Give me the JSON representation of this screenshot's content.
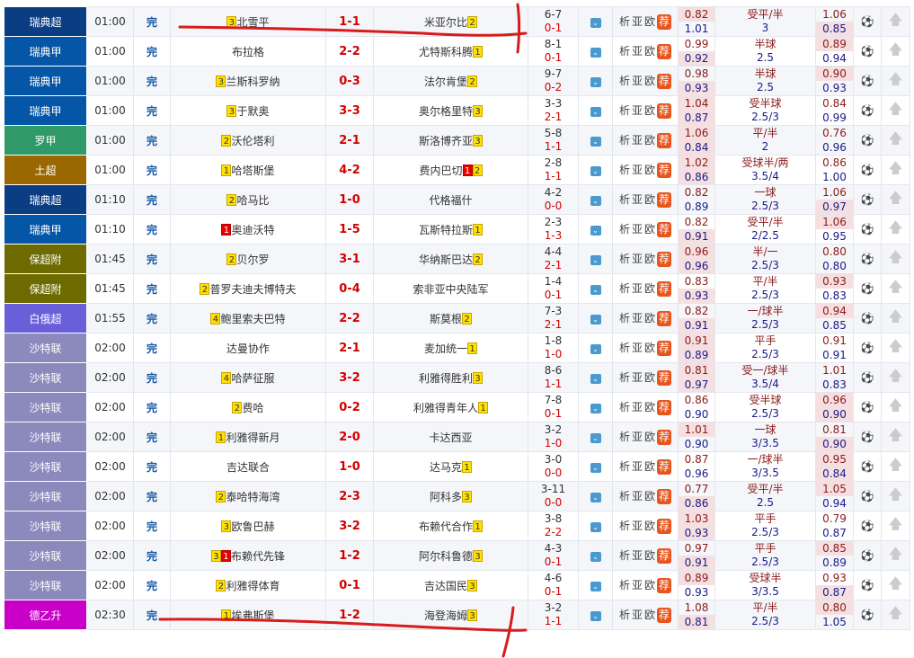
{
  "league_colors": {
    "瑞典超": "#0b3d82",
    "瑞典甲": "#0556a6",
    "罗甲": "#2f9a67",
    "土超": "#9a6700",
    "保超附": "#6d6b00",
    "白俄超": "#6960d9",
    "沙特联": "#8c89bd",
    "德乙升": "#c800c8"
  },
  "labels": {
    "analysis": "析",
    "asia": "亚",
    "euro": "欧",
    "recommend": "荐"
  },
  "icons": {
    "dropdown": "chevron-down-icon",
    "ball": "football-icon",
    "top": "arrow-up-icon"
  },
  "matches": [
    {
      "league": "瑞典超",
      "time": "01:00",
      "status": "完",
      "home": "北雪平",
      "home_badges": [
        {
          "t": "3",
          "c": "y"
        }
      ],
      "score": "1-1",
      "away": "米亚尔比",
      "away_badges": [
        {
          "t": "2",
          "c": "y"
        }
      ],
      "corners": "6-7",
      "half": "0-1",
      "o1": [
        "0.82",
        "1.01"
      ],
      "hcap": [
        "受平/半",
        "3"
      ],
      "o2": [
        "1.06",
        "0.85"
      ],
      "hl": [
        1,
        0,
        0,
        1
      ]
    },
    {
      "league": "瑞典甲",
      "time": "01:00",
      "status": "完",
      "home": "布拉格",
      "home_badges": [],
      "score": "2-2",
      "away": "尤特斯科腾",
      "away_badges": [
        {
          "t": "1",
          "c": "y"
        }
      ],
      "corners": "8-1",
      "half": "0-1",
      "o1": [
        "0.99",
        "0.92"
      ],
      "hcap": [
        "半球",
        "2.5"
      ],
      "o2": [
        "0.89",
        "0.94"
      ],
      "hl": [
        0,
        1,
        1,
        0
      ]
    },
    {
      "league": "瑞典甲",
      "time": "01:00",
      "status": "完",
      "home": "兰斯科罗纳",
      "home_badges": [
        {
          "t": "3",
          "c": "y"
        }
      ],
      "score": "0-3",
      "away": "法尔肯堡",
      "away_badges": [
        {
          "t": "2",
          "c": "y"
        }
      ],
      "corners": "9-7",
      "half": "0-2",
      "o1": [
        "0.98",
        "0.93"
      ],
      "hcap": [
        "半球",
        "2.5"
      ],
      "o2": [
        "0.90",
        "0.93"
      ],
      "hl": [
        0,
        1,
        1,
        0
      ]
    },
    {
      "league": "瑞典甲",
      "time": "01:00",
      "status": "完",
      "home": "于默奥",
      "home_badges": [
        {
          "t": "3",
          "c": "y"
        }
      ],
      "score": "3-3",
      "away": "奥尔格里特",
      "away_badges": [
        {
          "t": "3",
          "c": "y"
        }
      ],
      "corners": "3-3",
      "half": "2-1",
      "o1": [
        "1.04",
        "0.87"
      ],
      "hcap": [
        "受半球",
        "2.5/3"
      ],
      "o2": [
        "0.84",
        "0.99"
      ],
      "hl": [
        1,
        1,
        0,
        0
      ]
    },
    {
      "league": "罗甲",
      "time": "01:00",
      "status": "完",
      "home": "沃伦塔利",
      "home_badges": [
        {
          "t": "2",
          "c": "y"
        }
      ],
      "score": "2-1",
      "away": "斯洛博齐亚",
      "away_badges": [
        {
          "t": "3",
          "c": "y"
        }
      ],
      "corners": "5-8",
      "half": "1-1",
      "o1": [
        "1.06",
        "0.84"
      ],
      "hcap": [
        "平/半",
        "2"
      ],
      "o2": [
        "0.76",
        "0.96"
      ],
      "hl": [
        1,
        1,
        0,
        0
      ]
    },
    {
      "league": "土超",
      "time": "01:00",
      "status": "完",
      "home": "哈塔斯堡",
      "home_badges": [
        {
          "t": "1",
          "c": "y"
        }
      ],
      "score": "4-2",
      "away": "费内巴切",
      "away_badges": [
        {
          "t": "1",
          "c": "r"
        },
        {
          "t": "2",
          "c": "y"
        }
      ],
      "corners": "2-8",
      "half": "1-1",
      "o1": [
        "1.02",
        "0.86"
      ],
      "hcap": [
        "受球半/两",
        "3.5/4"
      ],
      "o2": [
        "0.86",
        "1.00"
      ],
      "hl": [
        1,
        1,
        0,
        0
      ]
    },
    {
      "league": "瑞典超",
      "time": "01:10",
      "status": "完",
      "home": "哈马比",
      "home_badges": [
        {
          "t": "2",
          "c": "y"
        }
      ],
      "score": "1-0",
      "away": "代格福什",
      "away_badges": [],
      "corners": "4-2",
      "half": "0-0",
      "o1": [
        "0.82",
        "0.89"
      ],
      "hcap": [
        "一球",
        "2.5/3"
      ],
      "o2": [
        "1.06",
        "0.97"
      ],
      "hl": [
        0,
        0,
        0,
        1
      ]
    },
    {
      "league": "瑞典甲",
      "time": "01:10",
      "status": "完",
      "home": "奥迪沃特",
      "home_badges": [
        {
          "t": "1",
          "c": "r"
        }
      ],
      "score": "1-5",
      "away": "瓦斯特拉斯",
      "away_badges": [
        {
          "t": "1",
          "c": "y"
        }
      ],
      "corners": "2-3",
      "half": "1-3",
      "o1": [
        "0.82",
        "0.91"
      ],
      "hcap": [
        "受平/半",
        "2/2.5"
      ],
      "o2": [
        "1.06",
        "0.95"
      ],
      "hl": [
        0,
        1,
        1,
        0
      ]
    },
    {
      "league": "保超附",
      "time": "01:45",
      "status": "完",
      "home": "贝尔罗",
      "home_badges": [
        {
          "t": "2",
          "c": "y"
        }
      ],
      "score": "3-1",
      "away": "华纳斯巴达",
      "away_badges": [
        {
          "t": "2",
          "c": "y"
        }
      ],
      "corners": "4-4",
      "half": "2-1",
      "o1": [
        "0.96",
        "0.96"
      ],
      "hcap": [
        "半/一",
        "2.5/3"
      ],
      "o2": [
        "0.80",
        "0.80"
      ],
      "hl": [
        1,
        1,
        0,
        0
      ]
    },
    {
      "league": "保超附",
      "time": "01:45",
      "status": "完",
      "home": "普罗夫迪夫博特夫",
      "home_badges": [
        {
          "t": "2",
          "c": "y"
        }
      ],
      "score": "0-4",
      "away": "索非亚中央陆军",
      "away_badges": [],
      "corners": "1-4",
      "half": "0-1",
      "o1": [
        "0.83",
        "0.93"
      ],
      "hcap": [
        "平/半",
        "2.5/3"
      ],
      "o2": [
        "0.93",
        "0.83"
      ],
      "hl": [
        0,
        1,
        1,
        0
      ]
    },
    {
      "league": "白俄超",
      "time": "01:55",
      "status": "完",
      "home": "鲍里索夫巴特",
      "home_badges": [
        {
          "t": "4",
          "c": "y"
        }
      ],
      "score": "2-2",
      "away": "斯莫根",
      "away_badges": [
        {
          "t": "2",
          "c": "y"
        }
      ],
      "corners": "7-3",
      "half": "2-1",
      "o1": [
        "0.82",
        "0.91"
      ],
      "hcap": [
        "一/球半",
        "2.5/3"
      ],
      "o2": [
        "0.94",
        "0.85"
      ],
      "hl": [
        0,
        1,
        1,
        0
      ]
    },
    {
      "league": "沙特联",
      "time": "02:00",
      "status": "完",
      "home": "达曼协作",
      "home_badges": [],
      "score": "2-1",
      "away": "麦加统一",
      "away_badges": [
        {
          "t": "1",
          "c": "y"
        }
      ],
      "corners": "1-8",
      "half": "1-0",
      "o1": [
        "0.91",
        "0.89"
      ],
      "hcap": [
        "平手",
        "2.5/3"
      ],
      "o2": [
        "0.91",
        "0.91"
      ],
      "hl": [
        1,
        1,
        0,
        0
      ]
    },
    {
      "league": "沙特联",
      "time": "02:00",
      "status": "完",
      "home": "哈萨征服",
      "home_badges": [
        {
          "t": "4",
          "c": "y"
        }
      ],
      "score": "3-2",
      "away": "利雅得胜利",
      "away_badges": [
        {
          "t": "3",
          "c": "y"
        }
      ],
      "corners": "8-6",
      "half": "1-1",
      "o1": [
        "0.81",
        "0.97"
      ],
      "hcap": [
        "受一/球半",
        "3.5/4"
      ],
      "o2": [
        "1.01",
        "0.83"
      ],
      "hl": [
        1,
        1,
        0,
        0
      ]
    },
    {
      "league": "沙特联",
      "time": "02:00",
      "status": "完",
      "home": "费哈",
      "home_badges": [
        {
          "t": "2",
          "c": "y"
        }
      ],
      "score": "0-2",
      "away": "利雅得青年人",
      "away_badges": [
        {
          "t": "1",
          "c": "y"
        }
      ],
      "corners": "7-8",
      "half": "0-1",
      "o1": [
        "0.86",
        "0.90"
      ],
      "hcap": [
        "受半球",
        "2.5/3"
      ],
      "o2": [
        "0.96",
        "0.90"
      ],
      "hl": [
        0,
        0,
        1,
        1
      ]
    },
    {
      "league": "沙特联",
      "time": "02:00",
      "status": "完",
      "home": "利雅得新月",
      "home_badges": [
        {
          "t": "1",
          "c": "y"
        }
      ],
      "score": "2-0",
      "away": "卡达西亚",
      "away_badges": [],
      "corners": "3-2",
      "half": "1-0",
      "o1": [
        "1.01",
        "0.90"
      ],
      "hcap": [
        "一球",
        "3/3.5"
      ],
      "o2": [
        "0.81",
        "0.90"
      ],
      "hl": [
        1,
        0,
        0,
        1
      ]
    },
    {
      "league": "沙特联",
      "time": "02:00",
      "status": "完",
      "home": "吉达联合",
      "home_badges": [],
      "score": "1-0",
      "away": "达马克",
      "away_badges": [
        {
          "t": "1",
          "c": "y"
        }
      ],
      "corners": "3-0",
      "half": "0-0",
      "o1": [
        "0.87",
        "0.96"
      ],
      "hcap": [
        "一/球半",
        "3/3.5"
      ],
      "o2": [
        "0.95",
        "0.84"
      ],
      "hl": [
        0,
        0,
        1,
        1
      ]
    },
    {
      "league": "沙特联",
      "time": "02:00",
      "status": "完",
      "home": "泰哈特海湾",
      "home_badges": [
        {
          "t": "2",
          "c": "y"
        }
      ],
      "score": "2-3",
      "away": "阿科多",
      "away_badges": [
        {
          "t": "3",
          "c": "y"
        }
      ],
      "corners": "3-11",
      "half": "0-0",
      "o1": [
        "0.77",
        "0.86"
      ],
      "hcap": [
        "受平/半",
        "2.5"
      ],
      "o2": [
        "1.05",
        "0.94"
      ],
      "hl": [
        0,
        1,
        1,
        0
      ]
    },
    {
      "league": "沙特联",
      "time": "02:00",
      "status": "完",
      "home": "欧鲁巴赫",
      "home_badges": [
        {
          "t": "3",
          "c": "y"
        }
      ],
      "score": "3-2",
      "away": "布赖代合作",
      "away_badges": [
        {
          "t": "1",
          "c": "y"
        }
      ],
      "corners": "3-8",
      "half": "2-2",
      "o1": [
        "1.03",
        "0.93"
      ],
      "hcap": [
        "平手",
        "2.5/3"
      ],
      "o2": [
        "0.79",
        "0.87"
      ],
      "hl": [
        1,
        1,
        0,
        0
      ]
    },
    {
      "league": "沙特联",
      "time": "02:00",
      "status": "完",
      "home": "布赖代先锋",
      "home_badges": [
        {
          "t": "3",
          "c": "y"
        },
        {
          "t": "1",
          "c": "r"
        }
      ],
      "score": "1-2",
      "away": "阿尔科鲁德",
      "away_badges": [
        {
          "t": "3",
          "c": "y"
        }
      ],
      "corners": "4-3",
      "half": "0-1",
      "o1": [
        "0.97",
        "0.91"
      ],
      "hcap": [
        "平手",
        "2.5/3"
      ],
      "o2": [
        "0.85",
        "0.89"
      ],
      "hl": [
        0,
        1,
        1,
        0
      ]
    },
    {
      "league": "沙特联",
      "time": "02:00",
      "status": "完",
      "home": "利雅得体育",
      "home_badges": [
        {
          "t": "2",
          "c": "y"
        }
      ],
      "score": "0-1",
      "away": "吉达国民",
      "away_badges": [
        {
          "t": "3",
          "c": "y"
        }
      ],
      "corners": "4-6",
      "half": "0-1",
      "o1": [
        "0.89",
        "0.93"
      ],
      "hcap": [
        "受球半",
        "3/3.5"
      ],
      "o2": [
        "0.93",
        "0.87"
      ],
      "hl": [
        1,
        0,
        0,
        1
      ]
    },
    {
      "league": "德乙升",
      "time": "02:30",
      "status": "完",
      "home": "埃弗斯堡",
      "home_badges": [
        {
          "t": "1",
          "c": "y"
        }
      ],
      "score": "1-2",
      "away": "海登海姆",
      "away_badges": [
        {
          "t": "3",
          "c": "y"
        }
      ],
      "corners": "3-2",
      "half": "1-1",
      "o1": [
        "1.08",
        "0.81"
      ],
      "hcap": [
        "平/半",
        "2.5/3"
      ],
      "o2": [
        "0.80",
        "1.05"
      ],
      "hl": [
        0,
        1,
        1,
        0
      ]
    }
  ]
}
